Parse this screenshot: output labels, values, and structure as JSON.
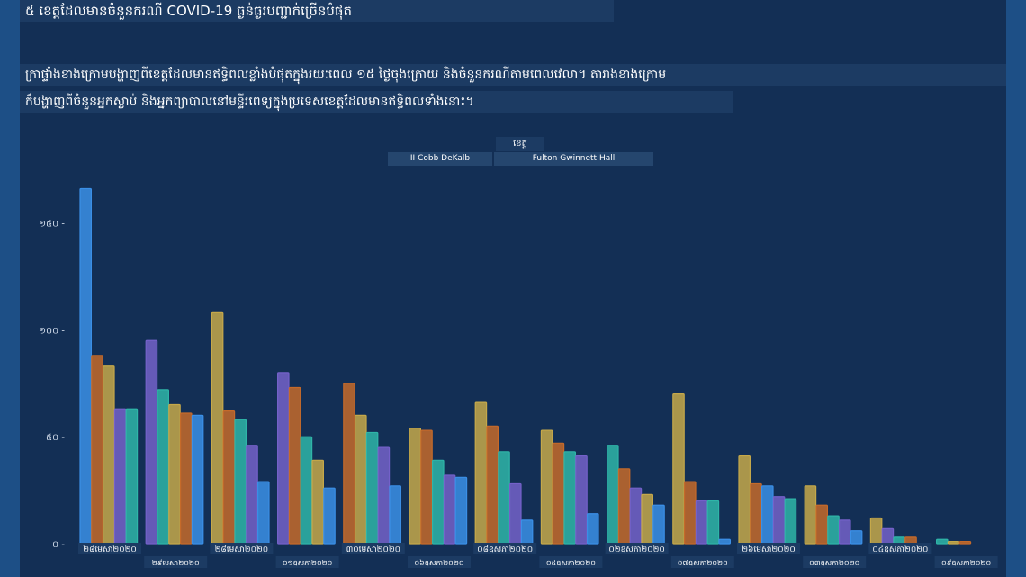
{
  "title": "៥ ខេត្តដែលមានចំនួនករណី COVID-19 ធ្ងន់ធ្ងរបញ្ជាក់ច្រើនបំផុត",
  "description_line1": "ក្រាផ្ទាំងខាងក្រោមបង្ហាញពីខេត្តដែលមានឥទ្ធិពលខ្លាំងបំផុតក្នុងរយៈពេល ១៥ ថ្ងៃចុងក្រោយ និងចំនួនករណីតាមពេលវេលា។ តារាងខាងក្រោម",
  "description_line2": "ក៏បង្ហាញពីចំនួនអ្នកស្លាប់ និងអ្នកព្យាបាលនៅមន្ទីរពេទ្យក្នុងប្រទេសខេត្តដែលមានឥទ្ធិពលទាំងនោះ។",
  "legend": {
    "title": "ខេត្ត",
    "items": [
      "II Cobb DeKalb",
      "Fulton Gwinnett Hall"
    ]
  },
  "colors": {
    "panel": "#132f55",
    "border": "#1d4f86",
    "series": [
      "#3b8fe6",
      "#c56a2a",
      "#c5a84a",
      "#7461c9",
      "#2fb5a8",
      "#3b8fe6"
    ]
  },
  "chart_data": {
    "type": "bar",
    "ylim": [
      0,
      170
    ],
    "yticks": [
      "០",
      "៥០",
      "១០០",
      "១៥០"
    ],
    "ytick_values": [
      0,
      50,
      100,
      150
    ],
    "categories": [
      "២៨មេសា២០២០",
      "២៩មេសា២០២០",
      "២៨មេសា២០២០",
      "០១ឧសភា២០២០",
      "៣០មេសា២០២០",
      "០៦ឧសភា២០២០",
      "០៨ឧសភា២០២០",
      "០៥ឧសភា២០២០",
      "០២ឧសភា២០២០",
      "០៧ឧសភា២០២០",
      "២៦មេសា២០២០",
      "០៣ឧសភា២០២០",
      "០៤ឧសភា២០២០",
      "០៩ឧសភា២០២០"
    ],
    "bars": [
      [
        {
          "c": 0,
          "v": 166
        },
        {
          "c": 1,
          "v": 88
        },
        {
          "c": 2,
          "v": 83
        },
        {
          "c": 3,
          "v": 63
        },
        {
          "c": 4,
          "v": 63
        }
      ],
      [
        {
          "c": 3,
          "v": 95
        },
        {
          "c": 4,
          "v": 72
        },
        {
          "c": 2,
          "v": 65
        },
        {
          "c": 1,
          "v": 61
        },
        {
          "c": 0,
          "v": 60
        }
      ],
      [
        {
          "c": 2,
          "v": 108
        },
        {
          "c": 1,
          "v": 62
        },
        {
          "c": 4,
          "v": 58
        },
        {
          "c": 3,
          "v": 46
        },
        {
          "c": 0,
          "v": 29
        }
      ],
      [
        {
          "c": 3,
          "v": 80
        },
        {
          "c": 1,
          "v": 73
        },
        {
          "c": 4,
          "v": 50
        },
        {
          "c": 2,
          "v": 39
        },
        {
          "c": 0,
          "v": 26
        }
      ],
      [
        {
          "c": 1,
          "v": 75
        },
        {
          "c": 2,
          "v": 60
        },
        {
          "c": 4,
          "v": 52
        },
        {
          "c": 3,
          "v": 45
        },
        {
          "c": 0,
          "v": 27
        }
      ],
      [
        {
          "c": 2,
          "v": 54
        },
        {
          "c": 1,
          "v": 53
        },
        {
          "c": 4,
          "v": 39
        },
        {
          "c": 3,
          "v": 32
        },
        {
          "c": 0,
          "v": 31
        }
      ],
      [
        {
          "c": 2,
          "v": 66
        },
        {
          "c": 1,
          "v": 55
        },
        {
          "c": 4,
          "v": 43
        },
        {
          "c": 3,
          "v": 28
        },
        {
          "c": 0,
          "v": 11
        }
      ],
      [
        {
          "c": 2,
          "v": 53
        },
        {
          "c": 1,
          "v": 47
        },
        {
          "c": 4,
          "v": 43
        },
        {
          "c": 3,
          "v": 41
        },
        {
          "c": 0,
          "v": 14
        }
      ],
      [
        {
          "c": 4,
          "v": 46
        },
        {
          "c": 1,
          "v": 35
        },
        {
          "c": 3,
          "v": 26
        },
        {
          "c": 2,
          "v": 23
        },
        {
          "c": 0,
          "v": 18
        }
      ],
      [
        {
          "c": 2,
          "v": 70
        },
        {
          "c": 1,
          "v": 29
        },
        {
          "c": 3,
          "v": 20
        },
        {
          "c": 4,
          "v": 20
        },
        {
          "c": 0,
          "v": 2
        }
      ],
      [
        {
          "c": 2,
          "v": 41
        },
        {
          "c": 1,
          "v": 28
        },
        {
          "c": 0,
          "v": 27
        },
        {
          "c": 3,
          "v": 22
        },
        {
          "c": 4,
          "v": 21
        }
      ],
      [
        {
          "c": 2,
          "v": 27
        },
        {
          "c": 1,
          "v": 18
        },
        {
          "c": 4,
          "v": 13
        },
        {
          "c": 3,
          "v": 11
        },
        {
          "c": 0,
          "v": 6
        }
      ],
      [
        {
          "c": 2,
          "v": 12
        },
        {
          "c": 3,
          "v": 7
        },
        {
          "c": 4,
          "v": 3
        },
        {
          "c": 1,
          "v": 3
        }
      ],
      [
        {
          "c": 4,
          "v": 2
        },
        {
          "c": 2,
          "v": 1
        },
        {
          "c": 1,
          "v": 1
        }
      ]
    ]
  }
}
